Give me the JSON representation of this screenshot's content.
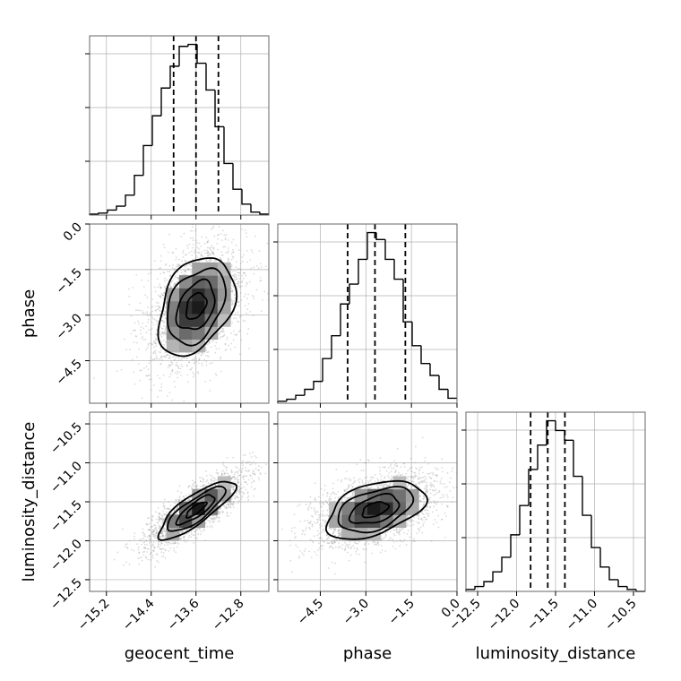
{
  "chart_data": {
    "type": "corner",
    "parameters": [
      "geocent_time",
      "phase",
      "luminosity_distance"
    ],
    "axis_labels": {
      "geocent_time": "geocent_time",
      "phase": "phase",
      "luminosity_distance": "luminosity_distance"
    },
    "ranges": {
      "geocent_time": [
        -15.5,
        -12.3
      ],
      "phase": [
        -5.9,
        0.0
      ],
      "luminosity_distance": [
        -12.65,
        -10.35
      ]
    },
    "ticks": {
      "geocent_time": [
        -15.2,
        -14.4,
        -13.6,
        -12.8
      ],
      "phase": [
        -4.5,
        -3.0,
        -1.5,
        0.0
      ],
      "luminosity_distance": [
        -12.5,
        -12.0,
        -11.5,
        -11.0,
        -10.5
      ]
    },
    "tick_labels": {
      "geocent_time": [
        "−15.2",
        "−14.4",
        "−13.6",
        "−12.8"
      ],
      "phase": [
        "−4.5",
        "−3.0",
        "−1.5",
        "0.0"
      ],
      "luminosity_distance": [
        "−12.5",
        "−12.0",
        "−11.5",
        "−11.0",
        "−10.5"
      ]
    },
    "quantiles_16_50_84": {
      "geocent_time": [
        -14.0,
        -13.6,
        -13.2
      ],
      "phase": [
        -3.6,
        -2.7,
        -1.7
      ],
      "luminosity_distance": [
        -11.82,
        -11.6,
        -11.38
      ]
    },
    "histograms_1d": {
      "geocent_time": {
        "bin_edges": [
          -15.5,
          -15.34,
          -15.18,
          -15.02,
          -14.86,
          -14.7,
          -14.54,
          -14.38,
          -14.22,
          -14.06,
          -13.9,
          -13.74,
          -13.58,
          -13.42,
          -13.26,
          -13.1,
          -12.94,
          -12.78,
          -12.62,
          -12.46,
          -12.3
        ],
        "counts": [
          1,
          2,
          5,
          9,
          20,
          40,
          70,
          100,
          128,
          150,
          170,
          172,
          153,
          126,
          89,
          52,
          26,
          11,
          3,
          1
        ]
      },
      "phase": {
        "bin_edges": [
          -5.9,
          -5.605,
          -5.31,
          -5.015,
          -4.72,
          -4.425,
          -4.13,
          -3.835,
          -3.54,
          -3.245,
          -2.95,
          -2.655,
          -2.36,
          -2.065,
          -1.77,
          -1.475,
          -1.18,
          -0.885,
          -0.59,
          -0.295,
          0.0
        ],
        "counts": [
          2,
          4,
          8,
          14,
          22,
          45,
          68,
          100,
          120,
          145,
          172,
          165,
          145,
          125,
          82,
          58,
          40,
          28,
          14,
          5
        ]
      },
      "luminosity_distance": {
        "bin_edges": [
          -12.65,
          -12.535,
          -12.42,
          -12.305,
          -12.19,
          -12.075,
          -11.96,
          -11.845,
          -11.73,
          -11.615,
          -11.5,
          -11.385,
          -11.27,
          -11.155,
          -11.04,
          -10.925,
          -10.81,
          -10.695,
          -10.58,
          -10.465,
          -10.35
        ],
        "counts": [
          2,
          5,
          10,
          20,
          35,
          58,
          88,
          125,
          150,
          175,
          165,
          155,
          118,
          78,
          45,
          25,
          12,
          5,
          2,
          0
        ]
      }
    },
    "samples_2d": {
      "geocent_time_vs_phase": {
        "mean_x": -13.6,
        "mean_y": -2.7,
        "sd_x": 0.4,
        "sd_y": 0.95,
        "correlation": 0.35,
        "n_points": 2400
      },
      "geocent_time_vs_luminosity_distance": {
        "mean_x": -13.6,
        "mean_y": -11.6,
        "sd_x": 0.4,
        "sd_y": 0.22,
        "correlation": 0.82,
        "n_points": 2400
      },
      "phase_vs_luminosity_distance": {
        "mean_x": -2.7,
        "mean_y": -11.6,
        "sd_x": 0.95,
        "sd_y": 0.22,
        "correlation": 0.45,
        "n_points": 2400
      }
    },
    "grid": true,
    "colors": {
      "lines": "#000000",
      "grid": "#b0b0b0",
      "points": "#999999"
    }
  }
}
